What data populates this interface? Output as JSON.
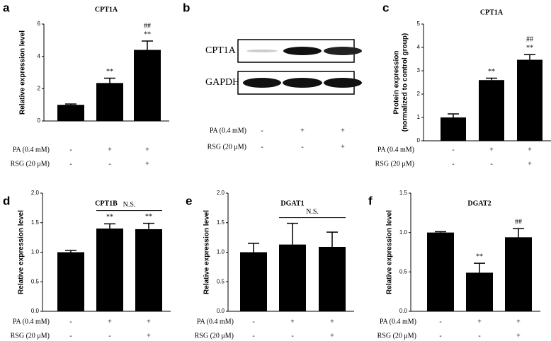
{
  "chart_data": [
    {
      "type": "bar",
      "panel": "a",
      "title": "CPT1A",
      "ylabel": [
        "Relative expression level"
      ],
      "color": "#000000",
      "ylim": [
        0,
        6
      ],
      "yticks": [
        0,
        2,
        4,
        6
      ],
      "values": [
        1.0,
        2.35,
        4.4
      ],
      "errors": [
        0.05,
        0.3,
        0.55
      ],
      "sig": [
        null,
        "**",
        "**"
      ],
      "sig2": [
        null,
        null,
        "##"
      ],
      "conditions": [
        {
          "label": "PA (0.4 mM)",
          "marks": [
            "-",
            "+",
            "+"
          ]
        },
        {
          "label": "RSG (20 μM)",
          "marks": [
            "-",
            "-",
            "+"
          ]
        }
      ]
    },
    {
      "type": "bar",
      "panel": "c",
      "title": "CPT1A",
      "ylabel": [
        "Protein expression",
        "(normalized to control group)"
      ],
      "color": "#000000",
      "ylim": [
        0,
        5
      ],
      "yticks": [
        0,
        1,
        2,
        3,
        4,
        5
      ],
      "values": [
        1.0,
        2.6,
        3.47
      ],
      "errors": [
        0.15,
        0.08,
        0.22
      ],
      "sig": [
        null,
        "**",
        "**"
      ],
      "sig2": [
        null,
        null,
        "##"
      ],
      "conditions": [
        {
          "label": "PA (0.4 mM)",
          "marks": [
            "-",
            "+",
            "+"
          ]
        },
        {
          "label": "RSG (20 μM)",
          "marks": [
            "-",
            "-",
            "+"
          ]
        }
      ]
    },
    {
      "type": "bar",
      "panel": "d",
      "title": "CPT1B",
      "ylabel": [
        "Relative expression level"
      ],
      "color": "#000000",
      "ylim": [
        0,
        2
      ],
      "yticks": [
        {
          "value": 0,
          "label": "0.0"
        },
        0.5,
        {
          "value": 1,
          "label": "1.0"
        },
        1.5,
        {
          "value": 2,
          "label": "2.0"
        }
      ],
      "values": [
        1.0,
        1.4,
        1.39
      ],
      "errors": [
        0.03,
        0.08,
        0.1
      ],
      "sig": [
        null,
        "**",
        "**"
      ],
      "bracket": {
        "text": "N.S.",
        "from": 1,
        "to": 2
      },
      "conditions": [
        {
          "label": "PA (0.4 mM)",
          "marks": [
            "-",
            "+",
            "+"
          ]
        },
        {
          "label": "RSG (20 μM)",
          "marks": [
            "-",
            "-",
            "+"
          ]
        }
      ]
    },
    {
      "type": "bar",
      "panel": "e",
      "title": "DGAT1",
      "ylabel": [
        "Relative expression level"
      ],
      "color": "#000000",
      "ylim": [
        0,
        2
      ],
      "yticks": [
        {
          "value": 0,
          "label": "0.0"
        },
        0.5,
        {
          "value": 1,
          "label": "1.0"
        },
        1.5,
        {
          "value": 2,
          "label": "2.0"
        }
      ],
      "values": [
        1.0,
        1.13,
        1.09
      ],
      "errors": [
        0.15,
        0.36,
        0.25
      ],
      "bracket": {
        "text": "N.S.",
        "from": 1,
        "to": 2
      },
      "conditions": [
        {
          "label": "PA (0.4 mM)",
          "marks": [
            "-",
            "+",
            "+"
          ]
        },
        {
          "label": "RSG (20 μM)",
          "marks": [
            "-",
            "-",
            "+"
          ]
        }
      ]
    },
    {
      "type": "bar",
      "panel": "f",
      "title": "DGAT2",
      "ylabel": [
        "Relative expression level"
      ],
      "color": "#000000",
      "ylim": [
        0,
        1.5
      ],
      "yticks": [
        {
          "value": 0,
          "label": "0.0"
        },
        0.5,
        {
          "value": 1,
          "label": "1.0"
        },
        1.5
      ],
      "values": [
        1.0,
        0.49,
        0.94
      ],
      "errors": [
        0.01,
        0.12,
        0.11
      ],
      "sig": [
        null,
        "**",
        "##"
      ],
      "conditions": [
        {
          "label": "PA (0.4 mM)",
          "marks": [
            "-",
            "+",
            "+"
          ]
        },
        {
          "label": "RSG (20 μM)",
          "marks": [
            "-",
            "-",
            "+"
          ]
        }
      ]
    }
  ],
  "blot": {
    "panel": "b",
    "bands": [
      "CPT1A",
      "GAPDH"
    ],
    "conditions": [
      {
        "label": "PA (0.4 mM)",
        "marks": [
          "-",
          "+",
          "+"
        ]
      },
      {
        "label": "RSG (20 μM)",
        "marks": [
          "-",
          "-",
          "+"
        ]
      }
    ]
  }
}
